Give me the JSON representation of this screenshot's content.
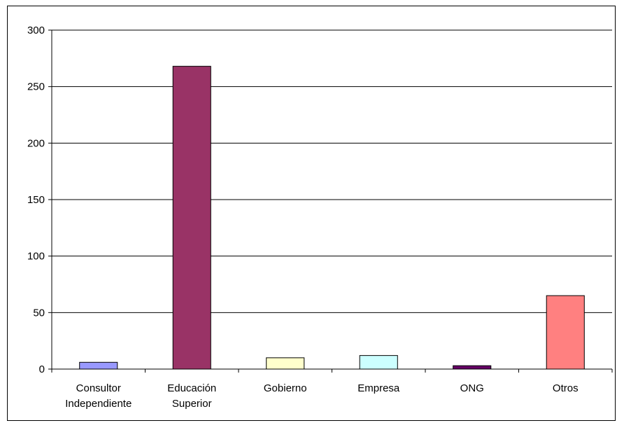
{
  "chart_data": {
    "type": "bar",
    "title": "",
    "xlabel": "",
    "ylabel": "",
    "ylim": [
      0,
      300
    ],
    "yticks": [
      0,
      50,
      100,
      150,
      200,
      250,
      300
    ],
    "grid": true,
    "legend": "none",
    "categories": [
      [
        "Consultor",
        "Independiente"
      ],
      [
        "Educación",
        "Superior"
      ],
      [
        "Gobierno"
      ],
      [
        "Empresa"
      ],
      [
        "ONG"
      ],
      [
        "Otros"
      ]
    ],
    "values": [
      6,
      268,
      10,
      12,
      3,
      65
    ],
    "colors": [
      "#9999FF",
      "#993366",
      "#FFFFCC",
      "#CCFFFF",
      "#660066",
      "#FF8080"
    ]
  }
}
